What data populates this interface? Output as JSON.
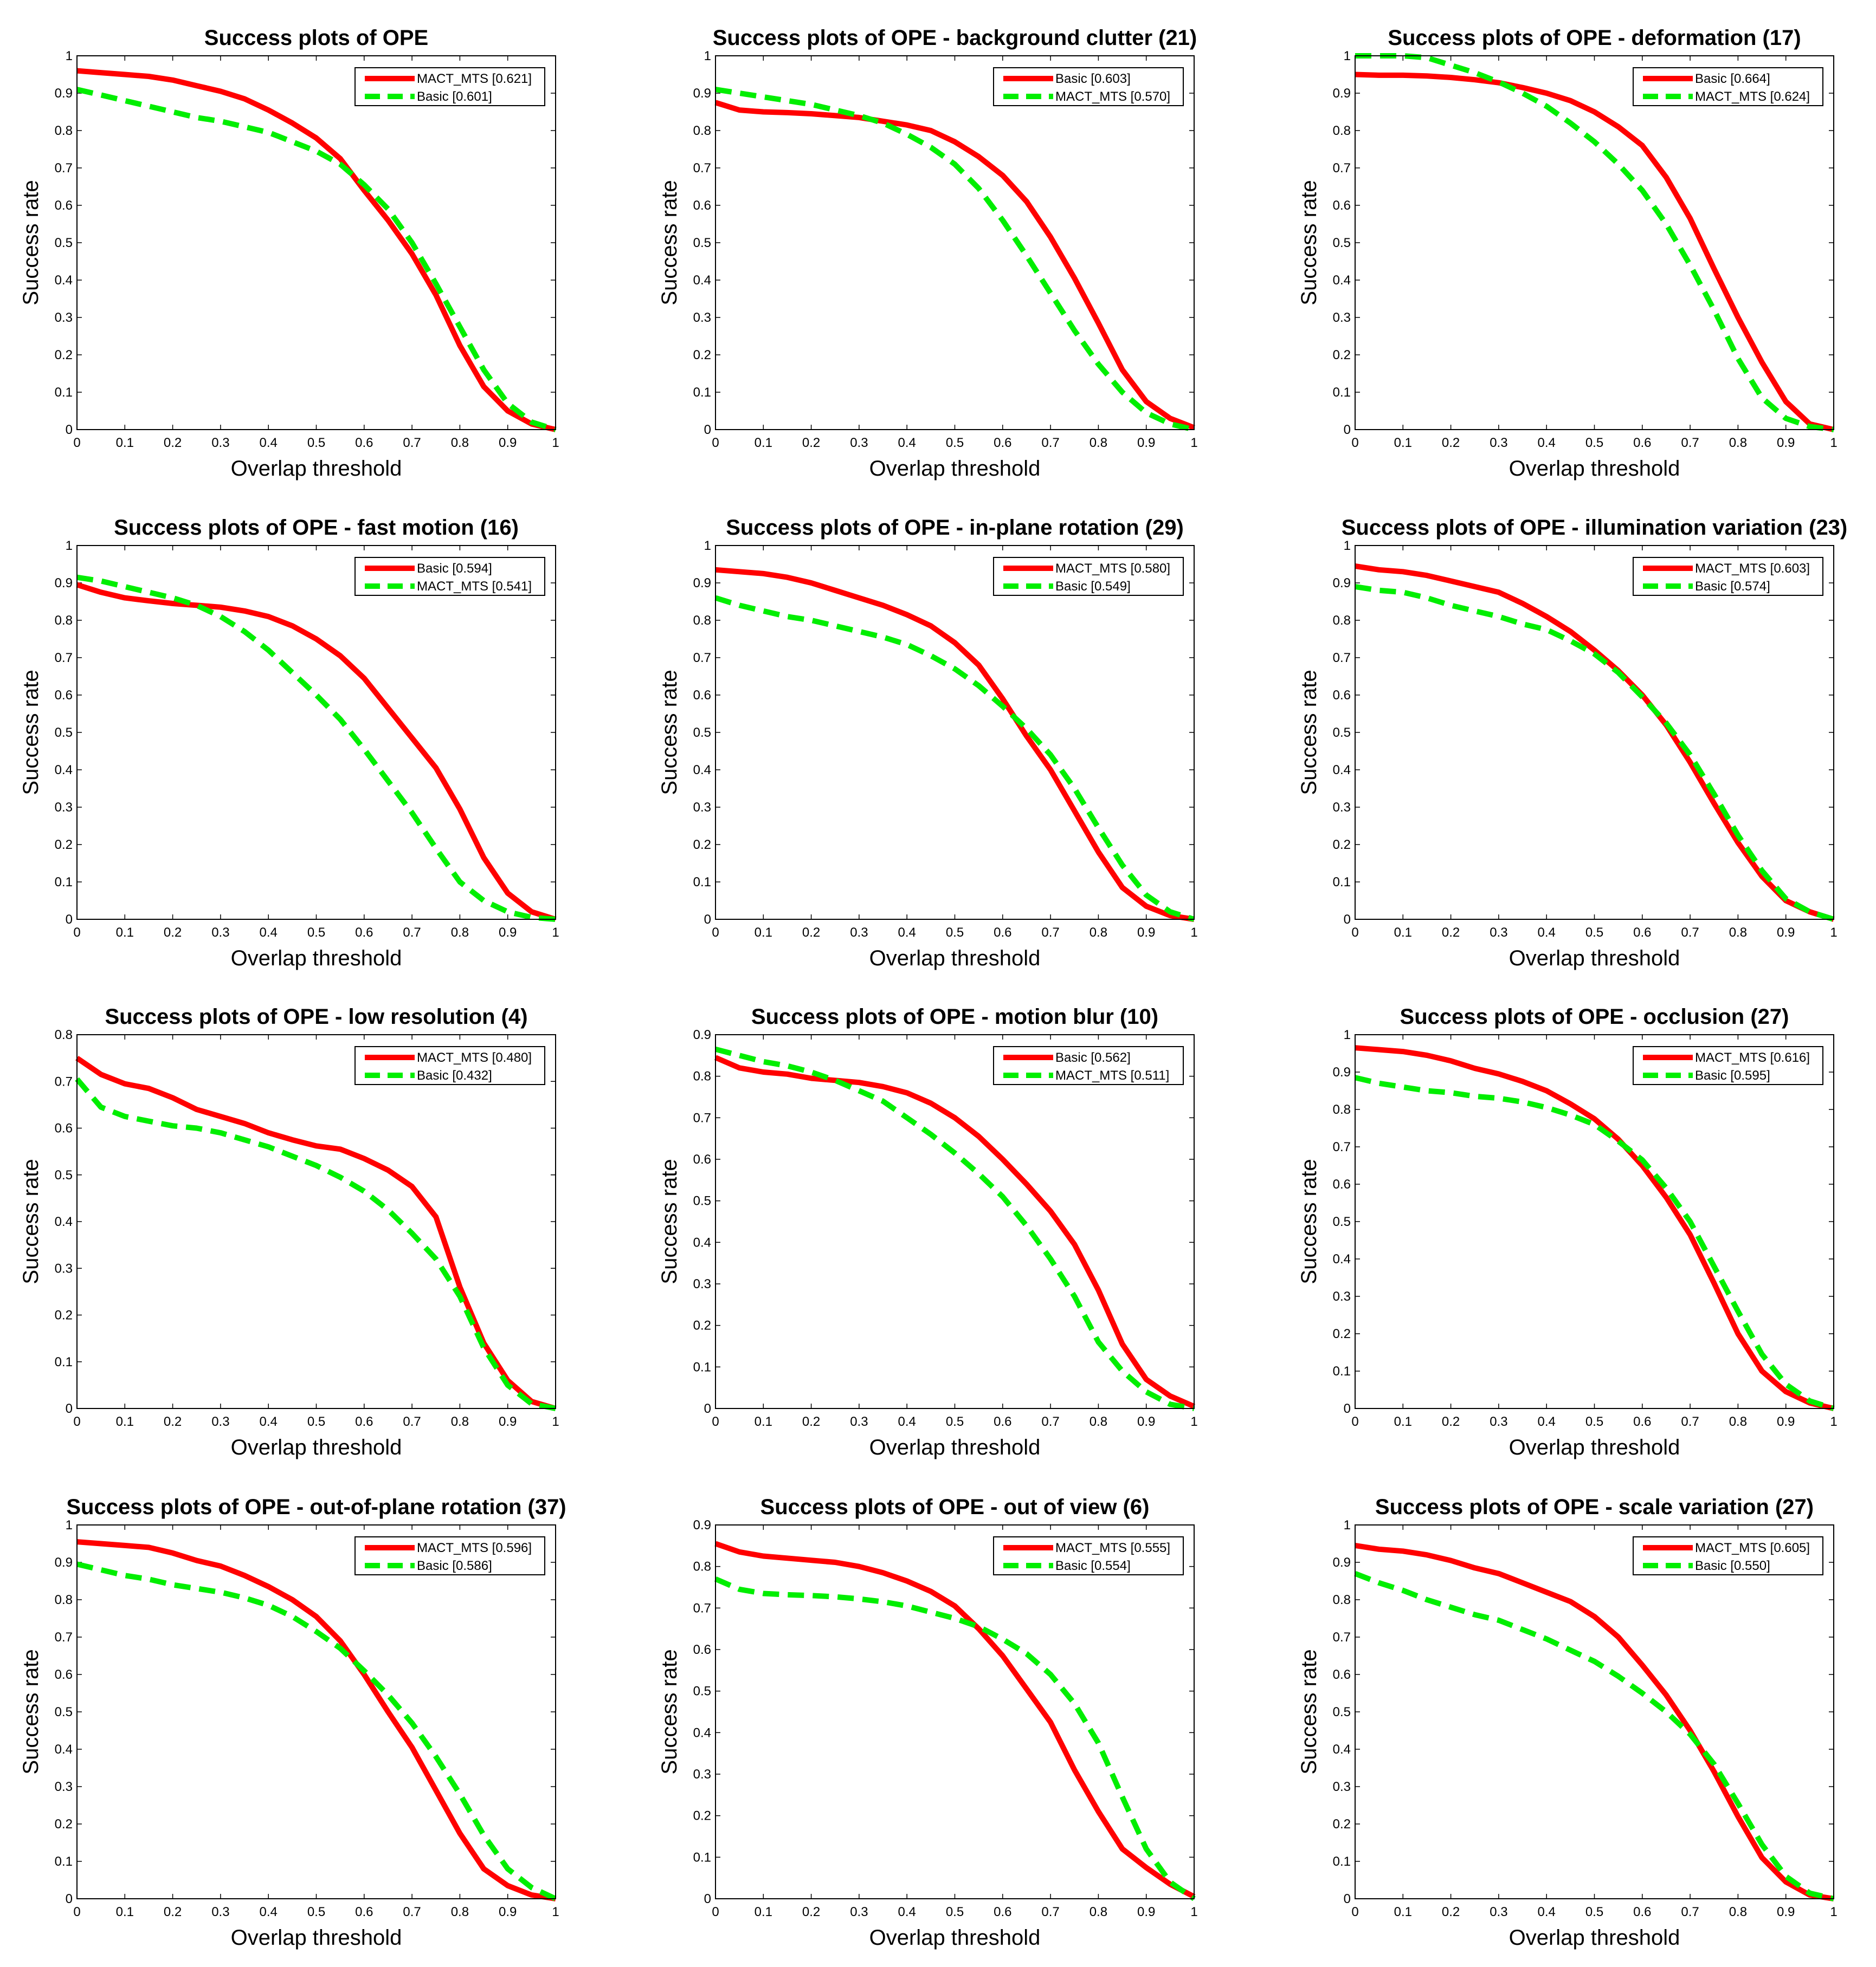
{
  "chart_data": [
    {
      "type": "line",
      "title": "Success plots of OPE",
      "xlabel": "Overlap threshold",
      "ylabel": "Success rate",
      "xlim": [
        0,
        1
      ],
      "ylim": [
        0,
        1
      ],
      "x": [
        0,
        0.05,
        0.1,
        0.15,
        0.2,
        0.25,
        0.3,
        0.35,
        0.4,
        0.45,
        0.5,
        0.55,
        0.6,
        0.65,
        0.7,
        0.75,
        0.8,
        0.85,
        0.9,
        0.95,
        1
      ],
      "series": [
        {
          "name": "MACT_MTS [0.621]",
          "color": "#ff0000",
          "dash": "solid",
          "values": [
            0.96,
            0.955,
            0.95,
            0.945,
            0.935,
            0.92,
            0.905,
            0.885,
            0.855,
            0.82,
            0.78,
            0.725,
            0.64,
            0.56,
            0.47,
            0.36,
            0.225,
            0.115,
            0.05,
            0.015,
            0
          ]
        },
        {
          "name": "Basic [0.601]",
          "color": "#00ee00",
          "dash": "dashed",
          "values": [
            0.91,
            0.895,
            0.88,
            0.865,
            0.85,
            0.835,
            0.825,
            0.81,
            0.795,
            0.77,
            0.745,
            0.71,
            0.655,
            0.59,
            0.5,
            0.39,
            0.275,
            0.16,
            0.07,
            0.02,
            0
          ]
        }
      ]
    },
    {
      "type": "line",
      "title": "Success plots of OPE - background clutter (21)",
      "xlabel": "Overlap threshold",
      "ylabel": "Success rate",
      "xlim": [
        0,
        1
      ],
      "ylim": [
        0,
        1
      ],
      "x": [
        0,
        0.05,
        0.1,
        0.15,
        0.2,
        0.25,
        0.3,
        0.35,
        0.4,
        0.45,
        0.5,
        0.55,
        0.6,
        0.65,
        0.7,
        0.75,
        0.8,
        0.85,
        0.9,
        0.95,
        1
      ],
      "series": [
        {
          "name": "Basic [0.603]",
          "color": "#ff0000",
          "dash": "solid",
          "values": [
            0.875,
            0.855,
            0.85,
            0.848,
            0.845,
            0.84,
            0.835,
            0.825,
            0.815,
            0.8,
            0.77,
            0.73,
            0.68,
            0.61,
            0.515,
            0.405,
            0.285,
            0.16,
            0.075,
            0.03,
            0.005
          ]
        },
        {
          "name": "MACT_MTS [0.570]",
          "color": "#00ee00",
          "dash": "dashed",
          "values": [
            0.91,
            0.9,
            0.89,
            0.88,
            0.87,
            0.855,
            0.84,
            0.82,
            0.79,
            0.755,
            0.71,
            0.645,
            0.56,
            0.465,
            0.365,
            0.265,
            0.175,
            0.1,
            0.045,
            0.015,
            0
          ]
        }
      ]
    },
    {
      "type": "line",
      "title": "Success plots of OPE - deformation (17)",
      "xlabel": "Overlap threshold",
      "ylabel": "Success rate",
      "xlim": [
        0,
        1
      ],
      "ylim": [
        0,
        1
      ],
      "x": [
        0,
        0.05,
        0.1,
        0.15,
        0.2,
        0.25,
        0.3,
        0.35,
        0.4,
        0.45,
        0.5,
        0.55,
        0.6,
        0.65,
        0.7,
        0.75,
        0.8,
        0.85,
        0.9,
        0.95,
        1
      ],
      "series": [
        {
          "name": "Basic [0.664]",
          "color": "#ff0000",
          "dash": "solid",
          "values": [
            0.95,
            0.948,
            0.948,
            0.946,
            0.942,
            0.936,
            0.928,
            0.915,
            0.9,
            0.88,
            0.85,
            0.81,
            0.76,
            0.675,
            0.565,
            0.43,
            0.3,
            0.18,
            0.075,
            0.015,
            0
          ]
        },
        {
          "name": "MACT_MTS [0.624]",
          "color": "#00ee00",
          "dash": "dashed",
          "values": [
            1.0,
            1.0,
            1.0,
            0.995,
            0.975,
            0.955,
            0.93,
            0.9,
            0.865,
            0.82,
            0.77,
            0.71,
            0.64,
            0.55,
            0.44,
            0.32,
            0.19,
            0.085,
            0.03,
            0.008,
            0
          ]
        }
      ]
    },
    {
      "type": "line",
      "title": "Success plots of OPE - fast motion (16)",
      "xlabel": "Overlap threshold",
      "ylabel": "Success rate",
      "xlim": [
        0,
        1
      ],
      "ylim": [
        0,
        1
      ],
      "x": [
        0,
        0.05,
        0.1,
        0.15,
        0.2,
        0.25,
        0.3,
        0.35,
        0.4,
        0.45,
        0.5,
        0.55,
        0.6,
        0.65,
        0.7,
        0.75,
        0.8,
        0.85,
        0.9,
        0.95,
        1
      ],
      "series": [
        {
          "name": "Basic [0.594]",
          "color": "#ff0000",
          "dash": "solid",
          "values": [
            0.895,
            0.875,
            0.86,
            0.852,
            0.845,
            0.84,
            0.835,
            0.825,
            0.81,
            0.785,
            0.75,
            0.705,
            0.645,
            0.565,
            0.485,
            0.405,
            0.295,
            0.165,
            0.07,
            0.02,
            0
          ]
        },
        {
          "name": "MACT_MTS [0.541]",
          "color": "#00ee00",
          "dash": "dashed",
          "values": [
            0.915,
            0.905,
            0.89,
            0.875,
            0.86,
            0.84,
            0.81,
            0.77,
            0.72,
            0.66,
            0.6,
            0.535,
            0.455,
            0.37,
            0.285,
            0.19,
            0.1,
            0.05,
            0.02,
            0.005,
            0
          ]
        }
      ]
    },
    {
      "type": "line",
      "title": "Success plots of OPE - in-plane rotation (29)",
      "xlabel": "Overlap threshold",
      "ylabel": "Success rate",
      "xlim": [
        0,
        1
      ],
      "ylim": [
        0,
        1
      ],
      "x": [
        0,
        0.05,
        0.1,
        0.15,
        0.2,
        0.25,
        0.3,
        0.35,
        0.4,
        0.45,
        0.5,
        0.55,
        0.6,
        0.65,
        0.7,
        0.75,
        0.8,
        0.85,
        0.9,
        0.95,
        1
      ],
      "series": [
        {
          "name": "MACT_MTS [0.580]",
          "color": "#ff0000",
          "dash": "solid",
          "values": [
            0.935,
            0.93,
            0.925,
            0.915,
            0.9,
            0.88,
            0.86,
            0.84,
            0.815,
            0.785,
            0.74,
            0.68,
            0.59,
            0.49,
            0.4,
            0.29,
            0.18,
            0.085,
            0.035,
            0.01,
            0
          ]
        },
        {
          "name": "Basic [0.549]",
          "color": "#00ee00",
          "dash": "dashed",
          "values": [
            0.86,
            0.84,
            0.825,
            0.81,
            0.8,
            0.785,
            0.77,
            0.755,
            0.735,
            0.705,
            0.67,
            0.625,
            0.57,
            0.51,
            0.44,
            0.35,
            0.245,
            0.145,
            0.065,
            0.02,
            0
          ]
        }
      ]
    },
    {
      "type": "line",
      "title": "Success plots of OPE - illumination variation (23)",
      "xlabel": "Overlap threshold",
      "ylabel": "Success rate",
      "xlim": [
        0,
        1
      ],
      "ylim": [
        0,
        1
      ],
      "x": [
        0,
        0.05,
        0.1,
        0.15,
        0.2,
        0.25,
        0.3,
        0.35,
        0.4,
        0.45,
        0.5,
        0.55,
        0.6,
        0.65,
        0.7,
        0.75,
        0.8,
        0.85,
        0.9,
        0.95,
        1
      ],
      "series": [
        {
          "name": "MACT_MTS [0.603]",
          "color": "#ff0000",
          "dash": "solid",
          "values": [
            0.945,
            0.935,
            0.93,
            0.92,
            0.905,
            0.89,
            0.875,
            0.845,
            0.81,
            0.77,
            0.72,
            0.665,
            0.6,
            0.52,
            0.42,
            0.31,
            0.205,
            0.115,
            0.05,
            0.02,
            0
          ]
        },
        {
          "name": "Basic [0.574]",
          "color": "#00ee00",
          "dash": "dashed",
          "values": [
            0.89,
            0.88,
            0.875,
            0.86,
            0.84,
            0.825,
            0.81,
            0.79,
            0.775,
            0.745,
            0.71,
            0.66,
            0.595,
            0.525,
            0.44,
            0.335,
            0.225,
            0.13,
            0.055,
            0.02,
            0
          ]
        }
      ]
    },
    {
      "type": "line",
      "title": "Success plots of OPE - low resolution (4)",
      "xlabel": "Overlap threshold",
      "ylabel": "Success rate",
      "xlim": [
        0,
        1
      ],
      "ylim": [
        0,
        0.8
      ],
      "x": [
        0,
        0.05,
        0.1,
        0.15,
        0.2,
        0.25,
        0.3,
        0.35,
        0.4,
        0.45,
        0.5,
        0.55,
        0.6,
        0.65,
        0.7,
        0.75,
        0.8,
        0.85,
        0.9,
        0.95,
        1
      ],
      "series": [
        {
          "name": "MACT_MTS [0.480]",
          "color": "#ff0000",
          "dash": "solid",
          "values": [
            0.75,
            0.715,
            0.695,
            0.685,
            0.665,
            0.64,
            0.625,
            0.61,
            0.59,
            0.575,
            0.562,
            0.555,
            0.535,
            0.51,
            0.475,
            0.41,
            0.26,
            0.14,
            0.06,
            0.015,
            0
          ]
        },
        {
          "name": "Basic [0.432]",
          "color": "#00ee00",
          "dash": "dashed",
          "values": [
            0.705,
            0.645,
            0.625,
            0.615,
            0.605,
            0.6,
            0.59,
            0.575,
            0.56,
            0.54,
            0.52,
            0.495,
            0.465,
            0.425,
            0.375,
            0.32,
            0.24,
            0.13,
            0.05,
            0.01,
            0
          ]
        }
      ]
    },
    {
      "type": "line",
      "title": "Success plots of OPE - motion blur (10)",
      "xlabel": "Overlap threshold",
      "ylabel": "Success rate",
      "xlim": [
        0,
        1
      ],
      "ylim": [
        0,
        0.9
      ],
      "x": [
        0,
        0.05,
        0.1,
        0.15,
        0.2,
        0.25,
        0.3,
        0.35,
        0.4,
        0.45,
        0.5,
        0.55,
        0.6,
        0.65,
        0.7,
        0.75,
        0.8,
        0.85,
        0.9,
        0.95,
        1
      ],
      "series": [
        {
          "name": "Basic [0.562]",
          "color": "#ff0000",
          "dash": "solid",
          "values": [
            0.845,
            0.82,
            0.81,
            0.805,
            0.795,
            0.79,
            0.785,
            0.775,
            0.76,
            0.735,
            0.7,
            0.655,
            0.6,
            0.54,
            0.475,
            0.395,
            0.285,
            0.155,
            0.07,
            0.03,
            0.005
          ]
        },
        {
          "name": "MACT_MTS [0.511]",
          "color": "#00ee00",
          "dash": "dashed",
          "values": [
            0.865,
            0.85,
            0.835,
            0.825,
            0.81,
            0.79,
            0.765,
            0.74,
            0.7,
            0.66,
            0.615,
            0.565,
            0.51,
            0.44,
            0.36,
            0.27,
            0.16,
            0.09,
            0.04,
            0.01,
            0
          ]
        }
      ]
    },
    {
      "type": "line",
      "title": "Success plots of OPE - occlusion (27)",
      "xlabel": "Overlap threshold",
      "ylabel": "Success rate",
      "xlim": [
        0,
        1
      ],
      "ylim": [
        0,
        1
      ],
      "x": [
        0,
        0.05,
        0.1,
        0.15,
        0.2,
        0.25,
        0.3,
        0.35,
        0.4,
        0.45,
        0.5,
        0.55,
        0.6,
        0.65,
        0.7,
        0.75,
        0.8,
        0.85,
        0.9,
        0.95,
        1
      ],
      "series": [
        {
          "name": "MACT_MTS [0.616]",
          "color": "#ff0000",
          "dash": "solid",
          "values": [
            0.965,
            0.96,
            0.955,
            0.945,
            0.93,
            0.91,
            0.895,
            0.875,
            0.85,
            0.815,
            0.775,
            0.72,
            0.65,
            0.565,
            0.465,
            0.335,
            0.2,
            0.1,
            0.045,
            0.015,
            0
          ]
        },
        {
          "name": "Basic [0.595]",
          "color": "#00ee00",
          "dash": "dashed",
          "values": [
            0.885,
            0.87,
            0.86,
            0.85,
            0.845,
            0.835,
            0.83,
            0.82,
            0.805,
            0.785,
            0.76,
            0.715,
            0.665,
            0.59,
            0.5,
            0.38,
            0.26,
            0.145,
            0.065,
            0.02,
            0
          ]
        }
      ]
    },
    {
      "type": "line",
      "title": "Success plots of OPE - out-of-plane rotation (37)",
      "xlabel": "Overlap threshold",
      "ylabel": "Success rate",
      "xlim": [
        0,
        1
      ],
      "ylim": [
        0,
        1
      ],
      "x": [
        0,
        0.05,
        0.1,
        0.15,
        0.2,
        0.25,
        0.3,
        0.35,
        0.4,
        0.45,
        0.5,
        0.55,
        0.6,
        0.65,
        0.7,
        0.75,
        0.8,
        0.85,
        0.9,
        0.95,
        1
      ],
      "series": [
        {
          "name": "MACT_MTS [0.596]",
          "color": "#ff0000",
          "dash": "solid",
          "values": [
            0.955,
            0.95,
            0.945,
            0.94,
            0.925,
            0.905,
            0.89,
            0.865,
            0.835,
            0.8,
            0.755,
            0.69,
            0.6,
            0.5,
            0.405,
            0.29,
            0.175,
            0.08,
            0.035,
            0.01,
            0
          ]
        },
        {
          "name": "Basic [0.586]",
          "color": "#00ee00",
          "dash": "dashed",
          "values": [
            0.895,
            0.88,
            0.865,
            0.855,
            0.84,
            0.83,
            0.82,
            0.805,
            0.785,
            0.755,
            0.715,
            0.67,
            0.61,
            0.545,
            0.47,
            0.38,
            0.28,
            0.17,
            0.08,
            0.03,
            0
          ]
        }
      ]
    },
    {
      "type": "line",
      "title": "Success plots of OPE - out of view (6)",
      "xlabel": "Overlap threshold",
      "ylabel": "Success rate",
      "xlim": [
        0,
        1
      ],
      "ylim": [
        0,
        0.9
      ],
      "x": [
        0,
        0.05,
        0.1,
        0.15,
        0.2,
        0.25,
        0.3,
        0.35,
        0.4,
        0.45,
        0.5,
        0.55,
        0.6,
        0.65,
        0.7,
        0.75,
        0.8,
        0.85,
        0.9,
        0.95,
        1
      ],
      "series": [
        {
          "name": "MACT_MTS [0.555]",
          "color": "#ff0000",
          "dash": "solid",
          "values": [
            0.855,
            0.835,
            0.825,
            0.82,
            0.815,
            0.81,
            0.8,
            0.785,
            0.765,
            0.74,
            0.705,
            0.65,
            0.585,
            0.505,
            0.425,
            0.31,
            0.21,
            0.12,
            0.075,
            0.035,
            0.005
          ]
        },
        {
          "name": "Basic [0.554]",
          "color": "#00ee00",
          "dash": "dashed",
          "values": [
            0.77,
            0.745,
            0.735,
            0.732,
            0.73,
            0.727,
            0.722,
            0.715,
            0.705,
            0.69,
            0.675,
            0.655,
            0.625,
            0.59,
            0.54,
            0.47,
            0.375,
            0.245,
            0.12,
            0.04,
            0
          ]
        }
      ]
    },
    {
      "type": "line",
      "title": "Success plots of OPE - scale variation (27)",
      "xlabel": "Overlap threshold",
      "ylabel": "Success rate",
      "xlim": [
        0,
        1
      ],
      "ylim": [
        0,
        1
      ],
      "x": [
        0,
        0.05,
        0.1,
        0.15,
        0.2,
        0.25,
        0.3,
        0.35,
        0.4,
        0.45,
        0.5,
        0.55,
        0.6,
        0.65,
        0.7,
        0.75,
        0.8,
        0.85,
        0.9,
        0.95,
        1
      ],
      "series": [
        {
          "name": "MACT_MTS [0.605]",
          "color": "#ff0000",
          "dash": "solid",
          "values": [
            0.945,
            0.935,
            0.93,
            0.92,
            0.905,
            0.885,
            0.87,
            0.845,
            0.82,
            0.795,
            0.755,
            0.7,
            0.625,
            0.545,
            0.45,
            0.34,
            0.22,
            0.11,
            0.045,
            0.01,
            0
          ]
        },
        {
          "name": "Basic [0.550]",
          "color": "#00ee00",
          "dash": "dashed",
          "values": [
            0.87,
            0.845,
            0.825,
            0.8,
            0.78,
            0.76,
            0.745,
            0.72,
            0.695,
            0.665,
            0.635,
            0.595,
            0.55,
            0.5,
            0.44,
            0.36,
            0.255,
            0.145,
            0.06,
            0.015,
            0
          ]
        }
      ]
    }
  ]
}
